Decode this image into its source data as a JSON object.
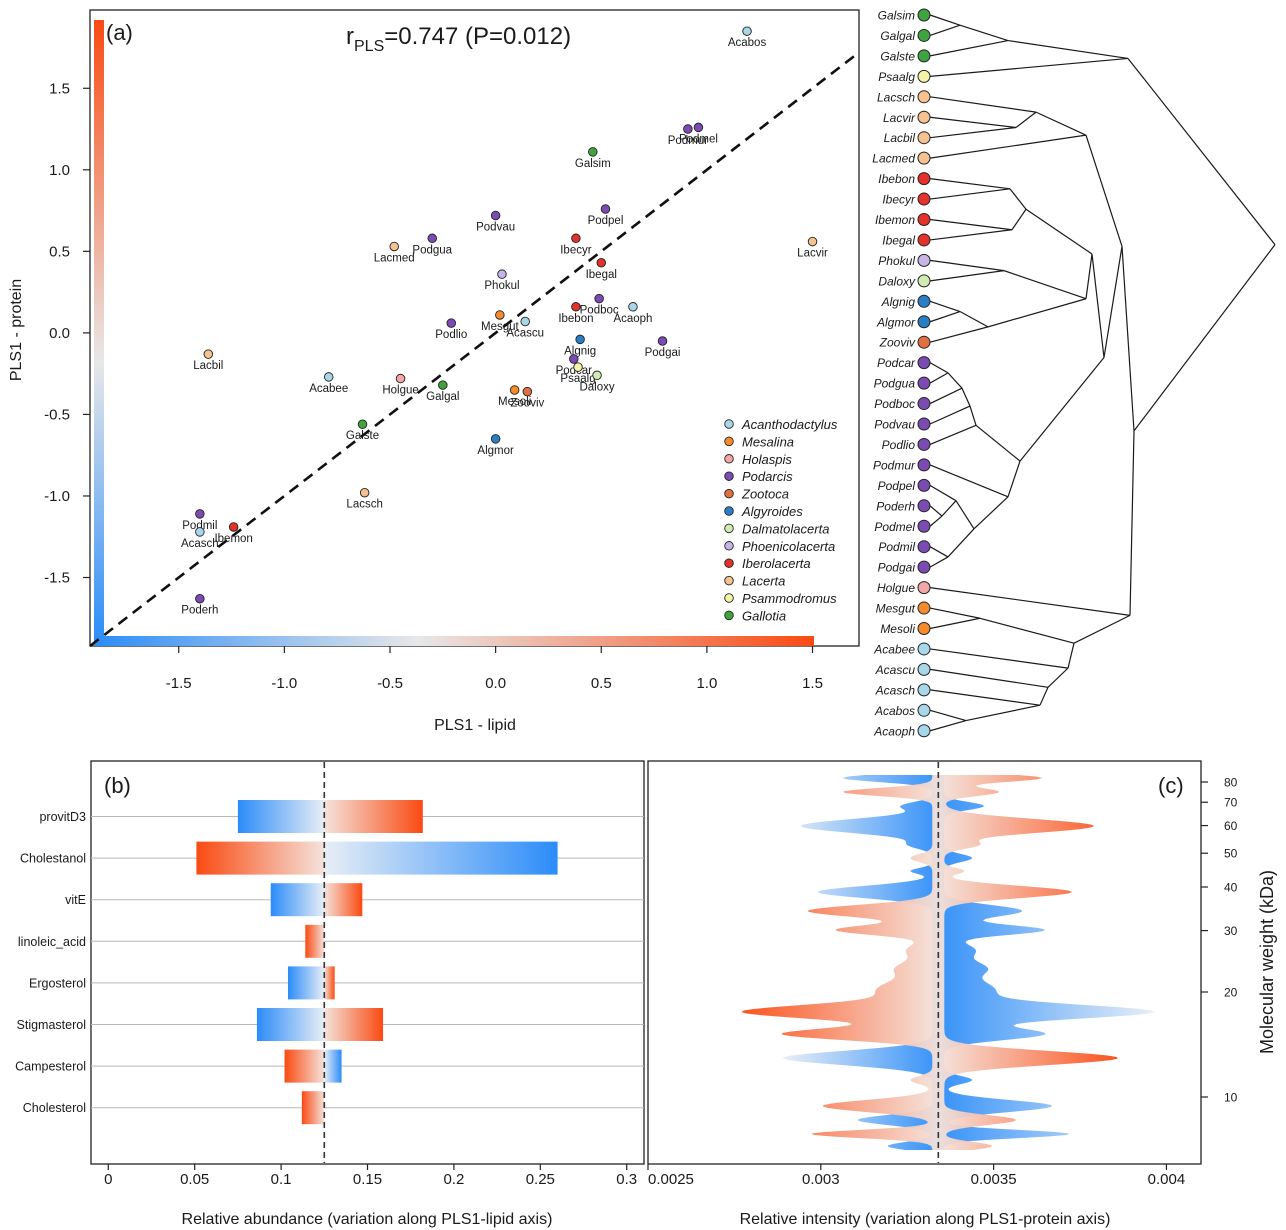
{
  "colors": {
    "positive": "#fa4a12",
    "negative": "#2b8cf8",
    "neutral": "#e8e8e8",
    "genus": {
      "Acanthodactylus": "#a9d7ea",
      "Mesalina": "#f58b2b",
      "Holaspis": "#f4a6a6",
      "Podarcis": "#7b4bb3",
      "Zootoca": "#e07040",
      "Algyroides": "#2a7ec4",
      "Dalmatolacerta": "#d0ecb3",
      "Phoenicolacerta": "#c8b5e6",
      "Iberolacerta": "#e2322a",
      "Lacerta": "#f6c28f",
      "Psammodromus": "#f5f3a8",
      "Gallotia": "#3fa33f"
    }
  },
  "chart_data": [
    {
      "type": "scatter",
      "panel": "(a)",
      "title": "r",
      "title_sub": "PLS",
      "title_rest": "=0.747 (P=0.012)",
      "xlabel": "PLS1 - lipid",
      "ylabel": "PLS1 - protein",
      "xlim": [
        -1.92,
        1.72
      ],
      "ylim": [
        -1.92,
        1.98
      ],
      "xticks": [
        "-1.5",
        "-1.0",
        "-0.5",
        "0.0",
        "0.5",
        "1.0",
        "1.5"
      ],
      "yticks": [
        "-1.5",
        "-1.0",
        "-0.5",
        "0.0",
        "0.5",
        "1.0",
        "1.5"
      ],
      "reference_line": "y = x",
      "legend": [
        "Acanthodactylus",
        "Mesalina",
        "Holaspis",
        "Podarcis",
        "Zootoca",
        "Algyroides",
        "Dalmatolacerta",
        "Phoenicolacerta",
        "Iberolacerta",
        "Lacerta",
        "Psammodromus",
        "Gallotia"
      ],
      "legend_position": "bottom-right",
      "points": [
        {
          "label": "Acabos",
          "genus": "Acanthodactylus",
          "x": 1.19,
          "y": 1.85
        },
        {
          "label": "Podmur",
          "genus": "Podarcis",
          "x": 0.91,
          "y": 1.25
        },
        {
          "label": "Podmel",
          "genus": "Podarcis",
          "x": 0.96,
          "y": 1.26
        },
        {
          "label": "Galsim",
          "genus": "Gallotia",
          "x": 0.46,
          "y": 1.11
        },
        {
          "label": "Podpel",
          "genus": "Podarcis",
          "x": 0.52,
          "y": 0.76
        },
        {
          "label": "Podvau",
          "genus": "Podarcis",
          "x": 0.0,
          "y": 0.72
        },
        {
          "label": "Podgua",
          "genus": "Podarcis",
          "x": -0.3,
          "y": 0.58
        },
        {
          "label": "Lacmed",
          "genus": "Lacerta",
          "x": -0.48,
          "y": 0.53
        },
        {
          "label": "Ibecyr",
          "genus": "Iberolacerta",
          "x": 0.38,
          "y": 0.58
        },
        {
          "label": "Lacvir",
          "genus": "Lacerta",
          "x": 1.5,
          "y": 0.56
        },
        {
          "label": "Ibegal",
          "genus": "Iberolacerta",
          "x": 0.5,
          "y": 0.43
        },
        {
          "label": "Phokul",
          "genus": "Phoenicolacerta",
          "x": 0.03,
          "y": 0.36
        },
        {
          "label": "Podboc",
          "genus": "Podarcis",
          "x": 0.49,
          "y": 0.21
        },
        {
          "label": "Acaoph",
          "genus": "Acanthodactylus",
          "x": 0.65,
          "y": 0.16
        },
        {
          "label": "Ibebon",
          "genus": "Iberolacerta",
          "x": 0.38,
          "y": 0.16
        },
        {
          "label": "Podlio",
          "genus": "Podarcis",
          "x": -0.21,
          "y": 0.06
        },
        {
          "label": "Mesgut",
          "genus": "Mesalina",
          "x": 0.02,
          "y": 0.11
        },
        {
          "label": "Acascu",
          "genus": "Acanthodactylus",
          "x": 0.14,
          "y": 0.07
        },
        {
          "label": "Algnig",
          "genus": "Algyroides",
          "x": 0.4,
          "y": -0.04
        },
        {
          "label": "Podgai",
          "genus": "Podarcis",
          "x": 0.79,
          "y": -0.05
        },
        {
          "label": "Lacbil",
          "genus": "Lacerta",
          "x": -1.36,
          "y": -0.13
        },
        {
          "label": "Podcar",
          "genus": "Podarcis",
          "x": 0.37,
          "y": -0.16
        },
        {
          "label": "Psaalg",
          "genus": "Psammodromus",
          "x": 0.39,
          "y": -0.21
        },
        {
          "label": "Daloxy",
          "genus": "Dalmatolacerta",
          "x": 0.48,
          "y": -0.26
        },
        {
          "label": "Acabee",
          "genus": "Acanthodactylus",
          "x": -0.79,
          "y": -0.27
        },
        {
          "label": "Holgue",
          "genus": "Holaspis",
          "x": -0.45,
          "y": -0.28
        },
        {
          "label": "Galgal",
          "genus": "Gallotia",
          "x": -0.25,
          "y": -0.32
        },
        {
          "label": "Mesoli",
          "genus": "Mesalina",
          "x": 0.09,
          "y": -0.35
        },
        {
          "label": "Zooviv",
          "genus": "Zootoca",
          "x": 0.15,
          "y": -0.36
        },
        {
          "label": "Galste",
          "genus": "Gallotia",
          "x": -0.63,
          "y": -0.56
        },
        {
          "label": "Algmor",
          "genus": "Algyroides",
          "x": 0.0,
          "y": -0.65
        },
        {
          "label": "Lacsch",
          "genus": "Lacerta",
          "x": -0.62,
          "y": -0.98
        },
        {
          "label": "Podmil",
          "genus": "Podarcis",
          "x": -1.4,
          "y": -1.11
        },
        {
          "label": "Ibemon",
          "genus": "Iberolacerta",
          "x": -1.24,
          "y": -1.19
        },
        {
          "label": "Acasch",
          "genus": "Acanthodactylus",
          "x": -1.4,
          "y": -1.22
        },
        {
          "label": "Poderh",
          "genus": "Podarcis",
          "x": -1.4,
          "y": -1.63
        }
      ]
    },
    {
      "type": "bar",
      "panel": "(b)",
      "xlabel": "Relative abundance (variation along PLS1-lipid axis)",
      "xlim": [
        -0.01,
        0.31
      ],
      "xticks": [
        "0",
        "0.05",
        "0.1",
        "0.15",
        "0.2",
        "0.25",
        "0.3"
      ],
      "reference_value": 0.125,
      "categories": [
        "provitD3",
        "Cholestanol",
        "vitE",
        "linoleic_acid",
        "Ergosterol",
        "Stigmasterol",
        "Campesterol",
        "Cholesterol"
      ],
      "series": [
        {
          "start": [
            0.075,
            0.26,
            0.094,
            null,
            0.104,
            0.086,
            null,
            null
          ],
          "end": [
            0.182,
            0.051,
            0.147,
            0.114,
            0.131,
            0.159,
            0.102,
            0.112
          ],
          "end_high": [
            null,
            null,
            null,
            null,
            null,
            null,
            0.135,
            null
          ]
        }
      ]
    },
    {
      "type": "area",
      "panel": "(c)",
      "xlabel": "Relative intensity (variation along PLS1-protein axis)",
      "ylabel": "Molecular weight (kDa)",
      "xlim": [
        0.0025,
        0.0041
      ],
      "xticks": [
        "0.0025",
        "0.003",
        "0.0035",
        "0.004"
      ],
      "yticks": [
        "80",
        "70",
        "60",
        "50",
        "40",
        "30",
        "20",
        "10"
      ],
      "y_scale": "log",
      "reference_value": 0.00334
    }
  ],
  "tree": {
    "taxa": [
      {
        "label": "Galsim",
        "genus": "Gallotia"
      },
      {
        "label": "Galgal",
        "genus": "Gallotia"
      },
      {
        "label": "Galste",
        "genus": "Gallotia"
      },
      {
        "label": "Psaalg",
        "genus": "Psammodromus"
      },
      {
        "label": "Lacsch",
        "genus": "Lacerta"
      },
      {
        "label": "Lacvir",
        "genus": "Lacerta"
      },
      {
        "label": "Lacbil",
        "genus": "Lacerta"
      },
      {
        "label": "Lacmed",
        "genus": "Lacerta"
      },
      {
        "label": "Ibebon",
        "genus": "Iberolacerta"
      },
      {
        "label": "Ibecyr",
        "genus": "Iberolacerta"
      },
      {
        "label": "Ibemon",
        "genus": "Iberolacerta"
      },
      {
        "label": "Ibegal",
        "genus": "Iberolacerta"
      },
      {
        "label": "Phokul",
        "genus": "Phoenicolacerta"
      },
      {
        "label": "Daloxy",
        "genus": "Dalmatolacerta"
      },
      {
        "label": "Algnig",
        "genus": "Algyroides"
      },
      {
        "label": "Algmor",
        "genus": "Algyroides"
      },
      {
        "label": "Zooviv",
        "genus": "Zootoca"
      },
      {
        "label": "Podcar",
        "genus": "Podarcis"
      },
      {
        "label": "Podgua",
        "genus": "Podarcis"
      },
      {
        "label": "Podboc",
        "genus": "Podarcis"
      },
      {
        "label": "Podvau",
        "genus": "Podarcis"
      },
      {
        "label": "Podlio",
        "genus": "Podarcis"
      },
      {
        "label": "Podmur",
        "genus": "Podarcis"
      },
      {
        "label": "Podpel",
        "genus": "Podarcis"
      },
      {
        "label": "Poderh",
        "genus": "Podarcis"
      },
      {
        "label": "Podmel",
        "genus": "Podarcis"
      },
      {
        "label": "Podmil",
        "genus": "Podarcis"
      },
      {
        "label": "Podgai",
        "genus": "Podarcis"
      },
      {
        "label": "Holgue",
        "genus": "Holaspis"
      },
      {
        "label": "Mesgut",
        "genus": "Mesalina"
      },
      {
        "label": "Mesoli",
        "genus": "Mesalina"
      },
      {
        "label": "Acabee",
        "genus": "Acanthodactylus"
      },
      {
        "label": "Acascu",
        "genus": "Acanthodactylus"
      },
      {
        "label": "Acasch",
        "genus": "Acanthodactylus"
      },
      {
        "label": "Acabos",
        "genus": "Acanthodactylus"
      },
      {
        "label": "Acaoph",
        "genus": "Acanthodactylus"
      }
    ]
  }
}
